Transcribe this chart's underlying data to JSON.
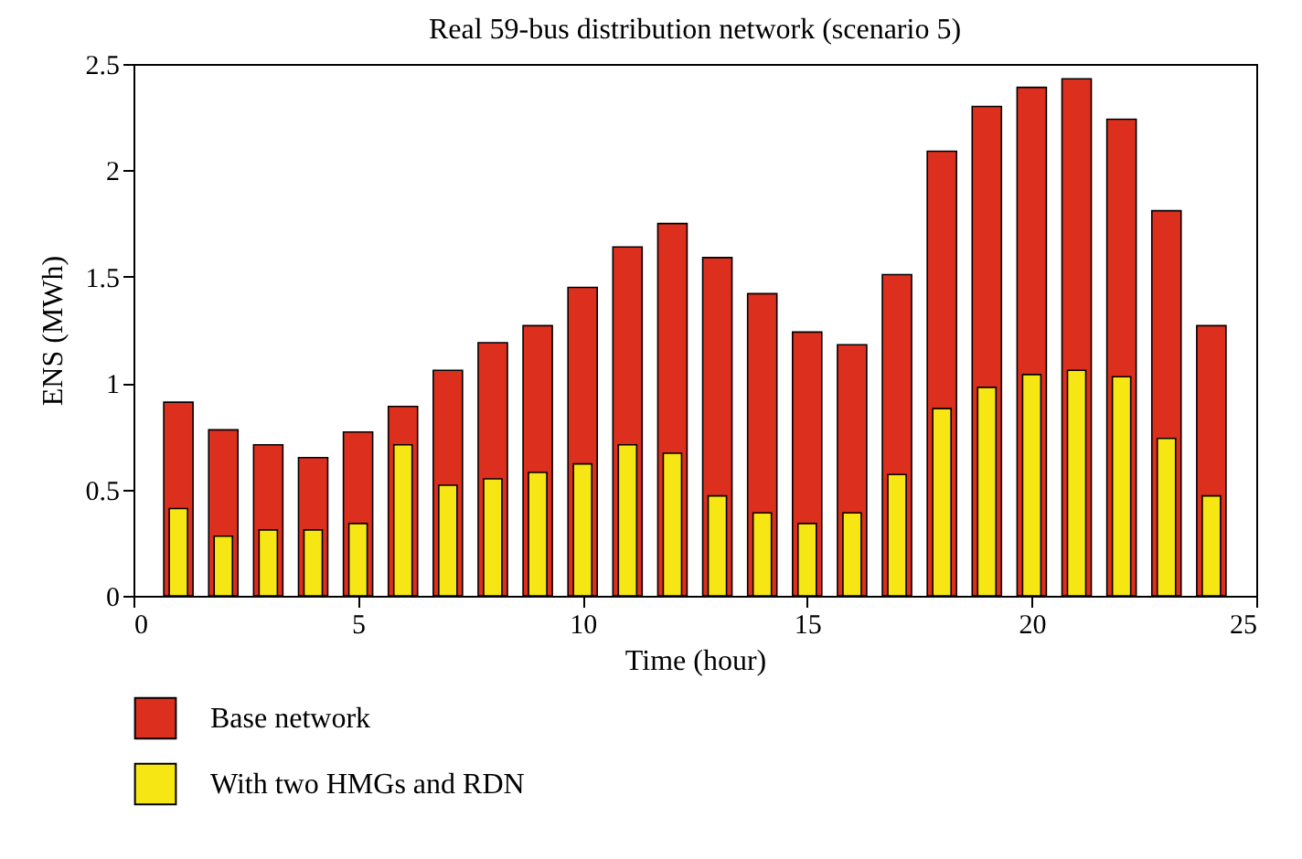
{
  "chart_data": {
    "type": "bar",
    "title": "Real 59-bus distribution network (scenario 5)",
    "xlabel": "Time (hour)",
    "ylabel": "ENS (MWh)",
    "x": [
      1,
      2,
      3,
      4,
      5,
      6,
      7,
      8,
      9,
      10,
      11,
      12,
      13,
      14,
      15,
      16,
      17,
      18,
      19,
      20,
      21,
      22,
      23,
      24
    ],
    "series": [
      {
        "name": "Base network",
        "color": "#dc2f1e",
        "values": [
          0.91,
          0.78,
          0.71,
          0.65,
          0.77,
          0.89,
          1.06,
          1.19,
          1.27,
          1.45,
          1.64,
          1.75,
          1.59,
          1.42,
          1.24,
          1.18,
          1.51,
          2.09,
          2.3,
          2.39,
          2.43,
          2.24,
          1.81,
          1.27
        ]
      },
      {
        "name": "With two HMGs and RDN",
        "color": "#f5e614",
        "values": [
          0.41,
          0.28,
          0.31,
          0.31,
          0.34,
          0.71,
          0.52,
          0.55,
          0.58,
          0.62,
          0.71,
          0.67,
          0.47,
          0.39,
          0.34,
          0.39,
          0.57,
          0.88,
          0.98,
          1.04,
          1.06,
          1.03,
          0.74,
          0.47
        ]
      }
    ],
    "xlim": [
      0,
      25
    ],
    "xticks": [
      0,
      5,
      10,
      15,
      20,
      25
    ],
    "ylim": [
      0,
      2.5
    ],
    "yticks": [
      0,
      0.5,
      1,
      1.5,
      2,
      2.5
    ],
    "grid": false,
    "legend": "bottom"
  }
}
